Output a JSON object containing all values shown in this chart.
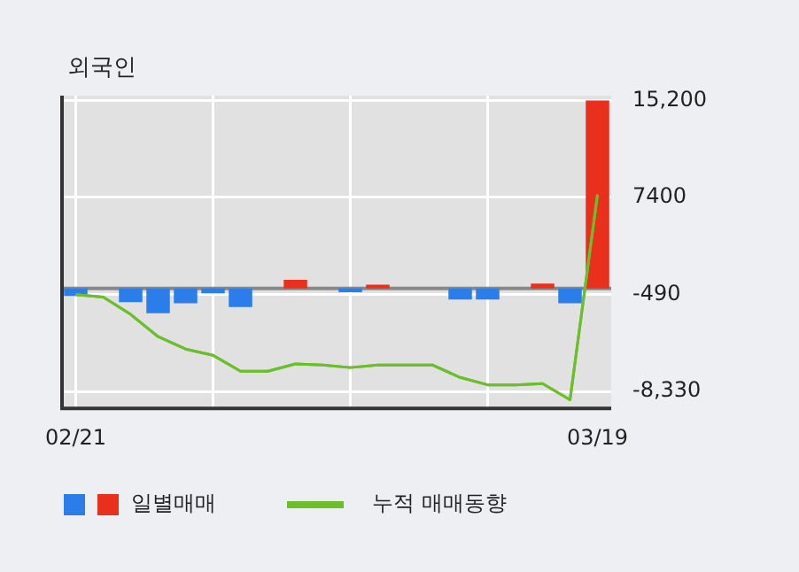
{
  "chart_data": {
    "type": "bar",
    "title": "외국인",
    "categories": [
      "02/21",
      null,
      null,
      null,
      null,
      null,
      null,
      null,
      null,
      null,
      null,
      null,
      null,
      null,
      null,
      null,
      null,
      null,
      null,
      "03/19"
    ],
    "series": [
      {
        "name": "일별매매",
        "colors": [
          "#2b7de9",
          "#2b7de9",
          "#2b7de9",
          "#2b7de9",
          "#2b7de9",
          "#2b7de9",
          "#2b7de9",
          "#e8301c",
          "#e8301c",
          "#2b7de9",
          "#2b7de9",
          "#e8301c",
          "#2b7de9",
          "#2b7de9",
          "#2b7de9",
          "#2b7de9",
          "#2b7de9",
          "#e8301c",
          "#2b7de9",
          "#e8301c"
        ],
        "values": [
          -600,
          0,
          -1100,
          -2000,
          -1200,
          -400,
          -1500,
          0,
          700,
          0,
          -300,
          300,
          0,
          0,
          -900,
          -900,
          0,
          400,
          -1200,
          15200
        ]
      },
      {
        "name": "누적 매매동향",
        "type": "line",
        "color": "#6cbf2a",
        "values": [
          -500,
          -700,
          -2100,
          -3900,
          -4900,
          -5400,
          -6700,
          -6700,
          -6100,
          -6200,
          -6400,
          -6200,
          -6200,
          -6200,
          -7200,
          -7800,
          -7800,
          -7700,
          -9000,
          7600
        ]
      }
    ],
    "ylim": [
      -9700,
      15600
    ],
    "yticks": [
      {
        "value": 15200,
        "label": "15,200"
      },
      7400,
      -490,
      {
        "value": -8330,
        "label": "-8,330"
      }
    ],
    "ref_lines": [
      {
        "axis": "y",
        "value": 0,
        "color": "#888888"
      }
    ],
    "grid": true,
    "legend": "bottom left",
    "marker": "none",
    "line_style": "solid"
  }
}
